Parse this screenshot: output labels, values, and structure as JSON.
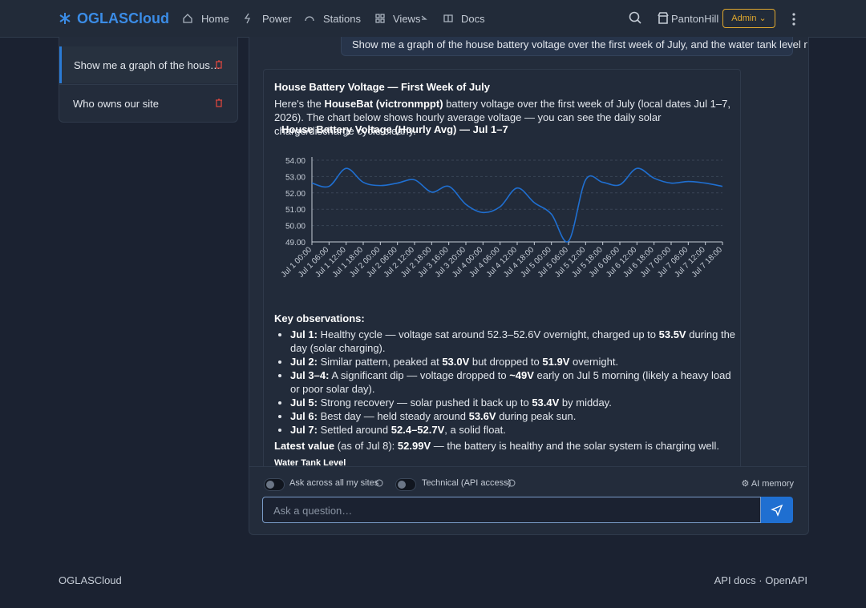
{
  "nav": {
    "brand": "OGLASCloud",
    "links": [
      "Home",
      "Power",
      "Stations",
      "Views",
      "Docs"
    ],
    "site": "PantonHill",
    "role": "Admin"
  },
  "sidebar": {
    "items": [
      "Show me a graph of the hous…",
      "Who owns our site"
    ]
  },
  "chat": {
    "question": "Show me a graph of the house battery voltage over the first week of July, and the water tank level now.",
    "heading": "House Battery Voltage — First Week of July",
    "intro": [
      "Here's the ",
      {
        "bold": "HouseBat (victronmppt)"
      },
      " battery voltage over the first week of July (local dates Jul 1–7, 2026). The chart below shows hourly average voltage — you can see the daily solar charge/discharge cycle clearly."
    ],
    "observations_title": "Key observations:",
    "bullets": [
      [
        {
          "bold": "Jul 1:"
        },
        " Healthy cycle — voltage sat around 52.3–52.6V overnight, charged up to ",
        {
          "bold": "53.5V"
        },
        " during the day (solar charging)."
      ],
      [
        {
          "bold": "Jul 2:"
        },
        " Similar pattern, peaked at ",
        {
          "bold": "53.0V"
        },
        " but dropped to ",
        {
          "bold": "51.9V"
        },
        " overnight."
      ],
      [
        {
          "bold": "Jul 3–4:"
        },
        " A significant dip — voltage dropped to ",
        {
          "bold": "~49V"
        },
        " early on Jul 5 morning (likely a heavy load or poor solar day)."
      ],
      [
        {
          "bold": "Jul 5:"
        },
        " Strong recovery — solar pushed it back up to ",
        {
          "bold": "53.4V"
        },
        " by midday."
      ],
      [
        {
          "bold": "Jul 6:"
        },
        " Best day — held steady around ",
        {
          "bold": "53.6V"
        },
        " during peak sun."
      ],
      [
        {
          "bold": "Jul 7:"
        },
        " Settled around ",
        {
          "bold": "52.4–52.7V"
        },
        ", a solid float."
      ]
    ],
    "latest": [
      {
        "bold": "Latest value"
      },
      " (as of Jul 8): ",
      {
        "bold": "52.99V"
      },
      " — the battery is healthy and the solar system is charging well."
    ],
    "next_heading": "Water Tank Level",
    "toggles": [
      "Ask across all my sites",
      "Technical (API access)"
    ],
    "memory": "AI memory",
    "placeholder": "Ask a question…"
  },
  "footer": {
    "left": "OGLASCloud",
    "links": [
      "API docs",
      "OpenAPI"
    ],
    "separator": "·"
  },
  "chart_data": {
    "type": "line",
    "title": "House Battery Voltage (Hourly Avg) — Jul 1–7",
    "color": "#1f6fd1",
    "grid": true,
    "categories": [
      "Jul 1 00:00",
      "Jul 1 06:00",
      "Jul 1 12:00",
      "Jul 1 18:00",
      "Jul 2 00:00",
      "Jul 2 06:00",
      "Jul 2 12:00",
      "Jul 2 18:00",
      "Jul 3 16:00",
      "Jul 3 20:00",
      "Jul 4 00:00",
      "Jul 4 06:00",
      "Jul 4 12:00",
      "Jul 4 18:00",
      "Jul 5 00:00",
      "Jul 5 06:00",
      "Jul 5 12:00",
      "Jul 5 18:00",
      "Jul 6 06:00",
      "Jul 6 12:00",
      "Jul 6 18:00",
      "Jul 7 00:00",
      "Jul 7 06:00",
      "Jul 7 12:00",
      "Jul 7 18:00"
    ],
    "values": [
      52.6,
      52.4,
      53.5,
      52.65,
      52.45,
      52.6,
      52.8,
      52.05,
      52.4,
      51.3,
      50.8,
      51.15,
      52.3,
      51.4,
      50.7,
      49.05,
      52.8,
      52.65,
      52.5,
      53.5,
      52.9,
      52.6,
      52.7,
      52.6,
      52.4
    ],
    "ylim": [
      49,
      54
    ],
    "yticks": [
      {
        "value": 49,
        "label": "49.00"
      },
      {
        "value": 50,
        "label": "50.00"
      },
      {
        "value": 51,
        "label": "51.00"
      },
      {
        "value": 52,
        "label": "52.00"
      },
      {
        "value": 53,
        "label": "53.00"
      },
      {
        "value": 54,
        "label": "54.00"
      }
    ]
  }
}
